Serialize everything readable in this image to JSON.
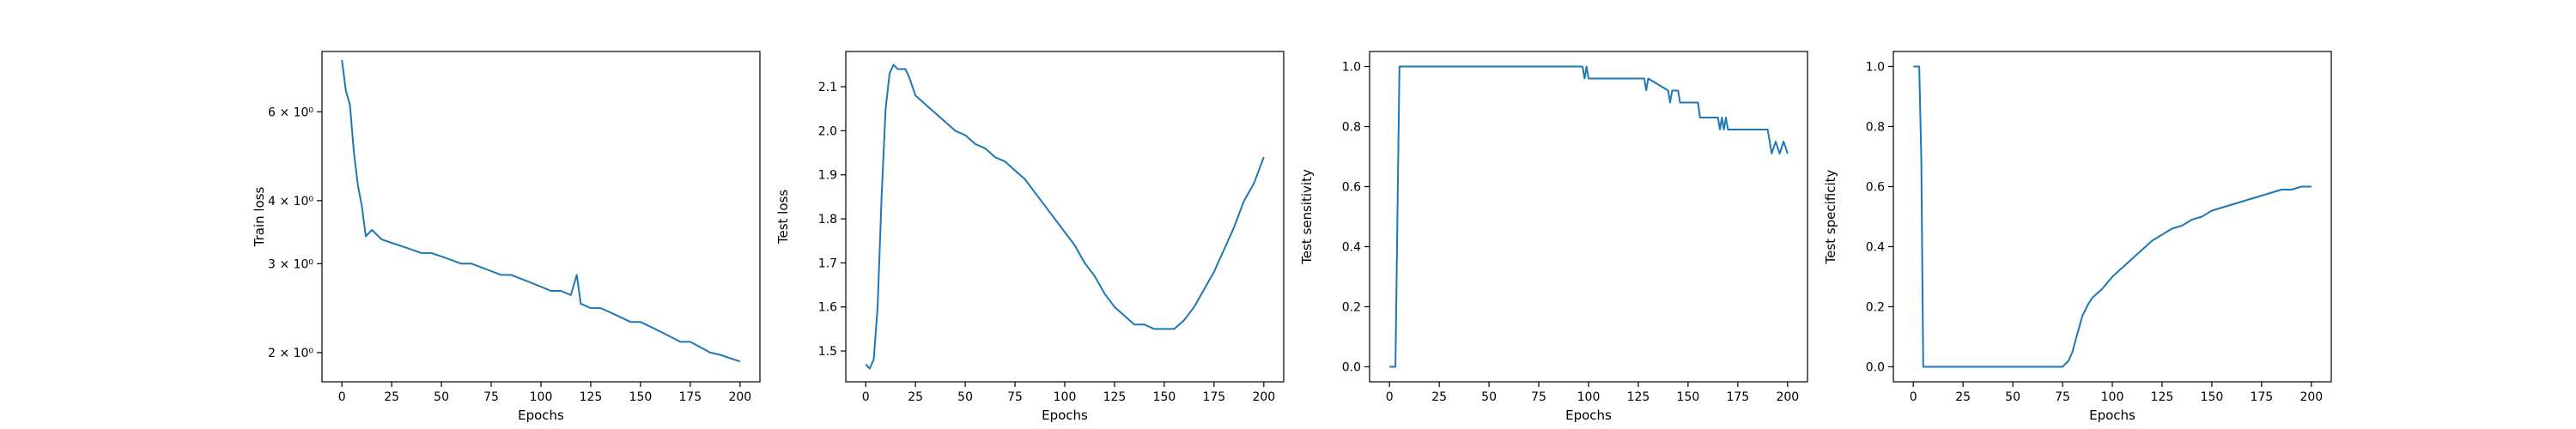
{
  "chart_data": [
    {
      "type": "line",
      "xlabel": "Epochs",
      "ylabel": "Train loss",
      "yscale": "log",
      "xlim": [
        -10,
        210
      ],
      "ylim": [
        1.75,
        7.9
      ],
      "xticks": [
        0,
        25,
        50,
        75,
        100,
        125,
        150,
        175,
        200
      ],
      "yticks": [
        {
          "value": 2,
          "label": "2 × 10⁰"
        },
        {
          "value": 3,
          "label": "3 × 10⁰"
        },
        {
          "value": 4,
          "label": "4 × 10⁰"
        },
        {
          "value": 6,
          "label": "6 × 10⁰"
        }
      ],
      "color": "#1f77b4",
      "grid": false,
      "series": [
        {
          "x": [
            0,
            2,
            4,
            6,
            8,
            10,
            12,
            15,
            20,
            25,
            30,
            35,
            40,
            45,
            50,
            55,
            60,
            65,
            70,
            75,
            80,
            85,
            90,
            95,
            100,
            105,
            110,
            115,
            118,
            120,
            125,
            130,
            135,
            140,
            145,
            150,
            155,
            160,
            165,
            170,
            175,
            180,
            185,
            190,
            195,
            200
          ],
          "values": [
            7.6,
            6.6,
            6.2,
            5.0,
            4.3,
            3.9,
            3.4,
            3.5,
            3.35,
            3.3,
            3.25,
            3.2,
            3.15,
            3.15,
            3.1,
            3.05,
            3.0,
            3.0,
            2.95,
            2.9,
            2.85,
            2.85,
            2.8,
            2.75,
            2.7,
            2.65,
            2.65,
            2.6,
            2.85,
            2.5,
            2.45,
            2.45,
            2.4,
            2.35,
            2.3,
            2.3,
            2.25,
            2.2,
            2.15,
            2.1,
            2.1,
            2.05,
            2.0,
            1.98,
            1.95,
            1.92
          ]
        }
      ]
    },
    {
      "type": "line",
      "xlabel": "Epochs",
      "ylabel": "Test loss",
      "xlim": [
        -10,
        210
      ],
      "ylim": [
        1.43,
        2.18
      ],
      "xticks": [
        0,
        25,
        50,
        75,
        100,
        125,
        150,
        175,
        200
      ],
      "yticks": [
        {
          "value": 1.5,
          "label": "1.5"
        },
        {
          "value": 1.6,
          "label": "1.6"
        },
        {
          "value": 1.7,
          "label": "1.7"
        },
        {
          "value": 1.8,
          "label": "1.8"
        },
        {
          "value": 1.9,
          "label": "1.9"
        },
        {
          "value": 2.0,
          "label": "2.0"
        },
        {
          "value": 2.1,
          "label": "2.1"
        }
      ],
      "color": "#1f77b4",
      "grid": false,
      "series": [
        {
          "x": [
            0,
            2,
            4,
            6,
            8,
            10,
            12,
            14,
            16,
            20,
            22,
            25,
            30,
            35,
            40,
            45,
            50,
            55,
            60,
            65,
            70,
            75,
            80,
            85,
            90,
            95,
            100,
            105,
            110,
            115,
            120,
            125,
            130,
            135,
            140,
            145,
            150,
            155,
            160,
            165,
            170,
            175,
            180,
            185,
            190,
            195,
            200
          ],
          "values": [
            1.47,
            1.46,
            1.48,
            1.6,
            1.85,
            2.05,
            2.13,
            2.15,
            2.14,
            2.14,
            2.12,
            2.08,
            2.06,
            2.04,
            2.02,
            2.0,
            1.99,
            1.97,
            1.96,
            1.94,
            1.93,
            1.91,
            1.89,
            1.86,
            1.83,
            1.8,
            1.77,
            1.74,
            1.7,
            1.67,
            1.63,
            1.6,
            1.58,
            1.56,
            1.56,
            1.55,
            1.55,
            1.55,
            1.57,
            1.6,
            1.64,
            1.68,
            1.73,
            1.78,
            1.84,
            1.88,
            1.94
          ]
        }
      ]
    },
    {
      "type": "line",
      "xlabel": "Epochs",
      "ylabel": "Test sensitivity",
      "xlim": [
        -10,
        210
      ],
      "ylim": [
        -0.05,
        1.05
      ],
      "xticks": [
        0,
        25,
        50,
        75,
        100,
        125,
        150,
        175,
        200
      ],
      "yticks": [
        {
          "value": 0.0,
          "label": "0.0"
        },
        {
          "value": 0.2,
          "label": "0.2"
        },
        {
          "value": 0.4,
          "label": "0.4"
        },
        {
          "value": 0.6,
          "label": "0.6"
        },
        {
          "value": 0.8,
          "label": "0.8"
        },
        {
          "value": 1.0,
          "label": "1.0"
        }
      ],
      "color": "#1f77b4",
      "grid": false,
      "series": [
        {
          "x": [
            0,
            3,
            5,
            97,
            98,
            99,
            100,
            128,
            129,
            130,
            140,
            141,
            142,
            145,
            146,
            155,
            156,
            165,
            166,
            167,
            168,
            169,
            170,
            171,
            190,
            192,
            194,
            196,
            198,
            200
          ],
          "values": [
            0.0,
            0.0,
            1.0,
            1.0,
            0.96,
            1.0,
            0.96,
            0.96,
            0.92,
            0.96,
            0.92,
            0.88,
            0.92,
            0.92,
            0.88,
            0.88,
            0.83,
            0.83,
            0.79,
            0.83,
            0.79,
            0.83,
            0.79,
            0.79,
            0.79,
            0.71,
            0.75,
            0.71,
            0.75,
            0.71
          ]
        }
      ]
    },
    {
      "type": "line",
      "xlabel": "Epochs",
      "ylabel": "Test specificity",
      "xlim": [
        -10,
        210
      ],
      "ylim": [
        -0.05,
        1.05
      ],
      "xticks": [
        0,
        25,
        50,
        75,
        100,
        125,
        150,
        175,
        200
      ],
      "yticks": [
        {
          "value": 0.0,
          "label": "0.0"
        },
        {
          "value": 0.2,
          "label": "0.2"
        },
        {
          "value": 0.4,
          "label": "0.4"
        },
        {
          "value": 0.6,
          "label": "0.6"
        },
        {
          "value": 0.8,
          "label": "0.8"
        },
        {
          "value": 1.0,
          "label": "1.0"
        }
      ],
      "color": "#1f77b4",
      "grid": false,
      "series": [
        {
          "x": [
            0,
            3,
            4,
            5,
            75,
            78,
            80,
            82,
            85,
            88,
            90,
            95,
            100,
            105,
            110,
            115,
            120,
            125,
            130,
            135,
            140,
            145,
            150,
            155,
            160,
            165,
            170,
            175,
            180,
            185,
            190,
            195,
            200
          ],
          "values": [
            1.0,
            1.0,
            0.7,
            0.0,
            0.0,
            0.02,
            0.05,
            0.1,
            0.17,
            0.21,
            0.23,
            0.26,
            0.3,
            0.33,
            0.36,
            0.39,
            0.42,
            0.44,
            0.46,
            0.47,
            0.49,
            0.5,
            0.52,
            0.53,
            0.54,
            0.55,
            0.56,
            0.57,
            0.58,
            0.59,
            0.59,
            0.6,
            0.6
          ]
        }
      ]
    }
  ]
}
